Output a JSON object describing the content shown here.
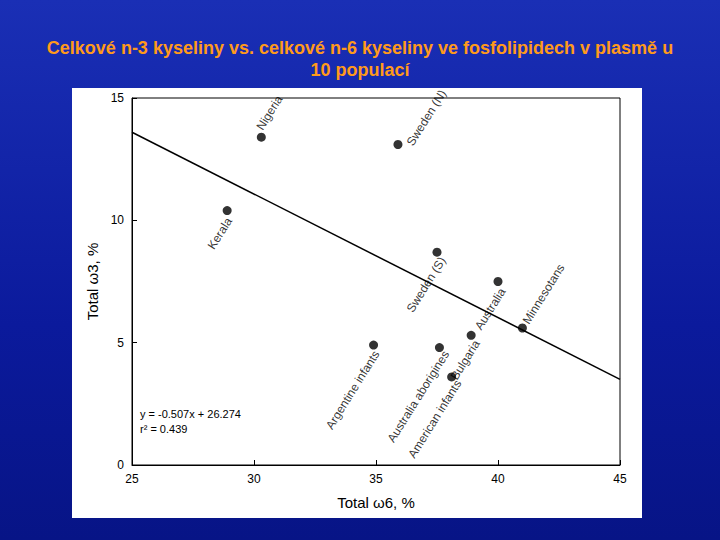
{
  "chart_data": {
    "type": "scatter",
    "title": "Celkové n-3 kyseliny vs. celkové n-6 kyseliny ve fosfolipidech v plasmě u 10 populací",
    "x_label": "Total ω6, %",
    "y_label": "Total ω3, %",
    "point_labels": [
      "Nigeria",
      "Sweden (N)",
      "Kerala",
      "Sweden (S)",
      "Australia",
      "Minnesotans",
      "Argentine infants",
      "Australia aborigines",
      "Bulgaria",
      "American infants"
    ],
    "x": [
      30.3,
      35.9,
      28.9,
      37.5,
      40.0,
      41.0,
      34.9,
      37.6,
      38.9,
      38.1
    ],
    "values": [
      13.4,
      13.1,
      10.4,
      8.7,
      7.5,
      5.6,
      4.9,
      4.8,
      5.3,
      3.6
    ],
    "color": "#000000",
    "marker": "circle",
    "trend_line": {
      "type": "line",
      "x": [
        25,
        45
      ],
      "values": [
        13.6,
        3.5
      ],
      "color": "#000000"
    },
    "annotations": [
      "y = -0.507x + 26.274",
      "r² = 0.439"
    ],
    "xlim": [
      25,
      45
    ],
    "xticks": [
      25,
      30,
      35,
      40,
      45
    ],
    "ylim": [
      0,
      15
    ],
    "yticks": [
      0,
      5,
      10,
      15
    ],
    "grid": false
  }
}
